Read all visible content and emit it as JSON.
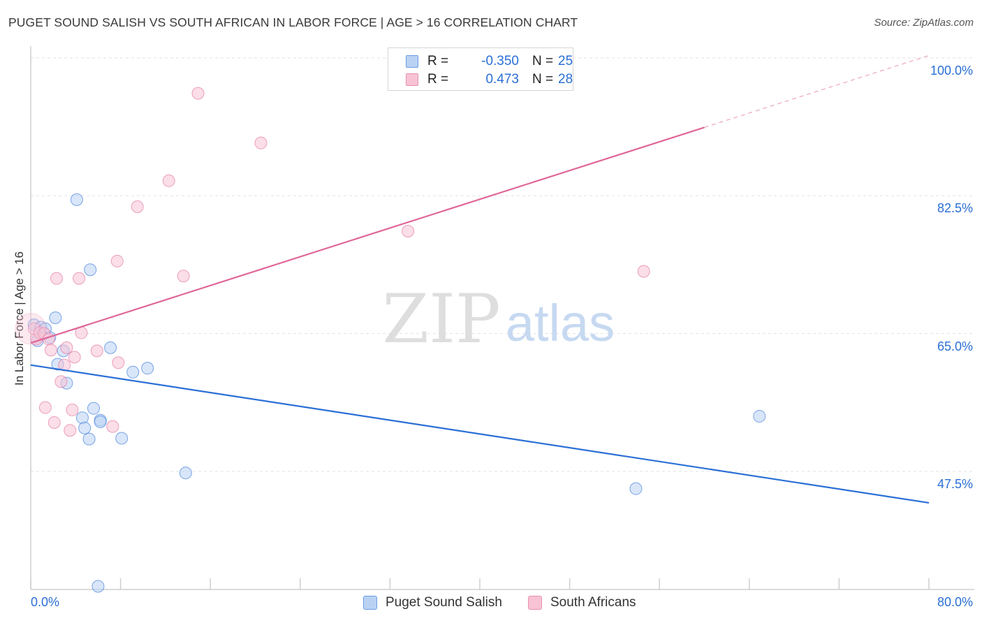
{
  "chart_data": {
    "type": "scatter",
    "title": "PUGET SOUND SALISH VS SOUTH AFRICAN IN LABOR FORCE | AGE > 16 CORRELATION CHART",
    "source": "Source: ZipAtlas.com",
    "ylabel": "In Labor Force | Age > 16",
    "xlabel": "",
    "xlim": [
      0,
      80
    ],
    "ylim": [
      32.5,
      101.5
    ],
    "x_tick_labels": [
      "0.0%",
      "80.0%"
    ],
    "y_ticks": [
      {
        "value": 100,
        "label": "100.0%"
      },
      {
        "value": 82.5,
        "label": "82.5%"
      },
      {
        "value": 65,
        "label": "65.0%"
      },
      {
        "value": 47.5,
        "label": "47.5%"
      }
    ],
    "watermark": {
      "zip": "ZIP",
      "atlas": "atlas"
    },
    "series": [
      {
        "name": "Puget Sound Salish",
        "color": "#2a6fd6",
        "fill": "#b9d2f4",
        "R": "-0.350",
        "N": "25",
        "trend": {
          "x0": 0,
          "y0": 61.0,
          "x1": 80,
          "y1": 43.5,
          "dashed_from": null
        },
        "points": [
          [
            0.3,
            66.1
          ],
          [
            0.6,
            64.1
          ],
          [
            0.9,
            65.8
          ],
          [
            1.3,
            65.6
          ],
          [
            1.7,
            64.5
          ],
          [
            2.2,
            67.0
          ],
          [
            2.4,
            61.1
          ],
          [
            2.9,
            62.8
          ],
          [
            3.2,
            58.7
          ],
          [
            4.1,
            82.0
          ],
          [
            4.6,
            54.3
          ],
          [
            4.8,
            53.0
          ],
          [
            5.2,
            51.6
          ],
          [
            5.3,
            73.1
          ],
          [
            5.6,
            55.5
          ],
          [
            6.2,
            54.0
          ],
          [
            6.2,
            53.8
          ],
          [
            7.1,
            63.2
          ],
          [
            8.1,
            51.7
          ],
          [
            9.1,
            60.1
          ],
          [
            10.4,
            60.6
          ],
          [
            13.8,
            47.3
          ],
          [
            53.9,
            45.3
          ],
          [
            64.9,
            54.5
          ],
          [
            6.0,
            32.9
          ]
        ]
      },
      {
        "name": "South Africans",
        "color": "#e0679a",
        "fill": "#f7c3d5",
        "R": "0.473",
        "N": "28",
        "trend": {
          "x0": 0,
          "y0": 63.8,
          "x1": 80,
          "y1": 100.3,
          "dashed_from": 60
        },
        "points": [
          [
            0.3,
            65.6
          ],
          [
            0.5,
            64.3
          ],
          [
            0.8,
            65.1
          ],
          [
            1.2,
            65.0
          ],
          [
            1.3,
            55.6
          ],
          [
            1.6,
            64.3
          ],
          [
            1.8,
            62.9
          ],
          [
            2.1,
            53.7
          ],
          [
            2.3,
            72.0
          ],
          [
            2.7,
            58.9
          ],
          [
            3.0,
            61.0
          ],
          [
            3.2,
            63.2
          ],
          [
            3.5,
            52.7
          ],
          [
            3.7,
            55.3
          ],
          [
            3.9,
            62.0
          ],
          [
            4.3,
            72.0
          ],
          [
            4.5,
            65.1
          ],
          [
            5.9,
            62.8
          ],
          [
            7.3,
            53.2
          ],
          [
            7.7,
            74.2
          ],
          [
            7.8,
            61.3
          ],
          [
            9.5,
            81.1
          ],
          [
            12.3,
            84.4
          ],
          [
            13.6,
            72.3
          ],
          [
            14.9,
            95.5
          ],
          [
            20.5,
            89.2
          ],
          [
            33.6,
            78.0
          ],
          [
            54.6,
            72.9
          ]
        ]
      }
    ]
  }
}
